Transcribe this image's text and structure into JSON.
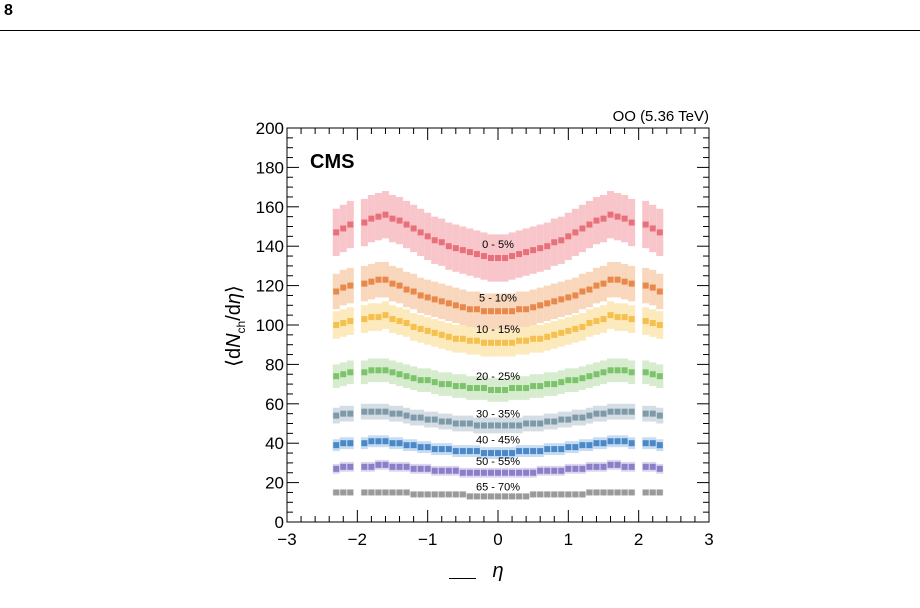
{
  "page": {
    "number": "8"
  },
  "chart_data": {
    "type": "scatter",
    "top_right_label": "OO (5.36 TeV)",
    "experiment_label": "CMS",
    "xlabel": "η",
    "ylabel": "⟨dN_ch/dη⟩",
    "xlim": [
      -3,
      3
    ],
    "ylim": [
      0,
      200
    ],
    "x_ticks": [
      "−3",
      "−2",
      "−1",
      "0",
      "1",
      "2",
      "3"
    ],
    "y_ticks": [
      "0",
      "20",
      "40",
      "60",
      "80",
      "100",
      "120",
      "140",
      "160",
      "180",
      "200"
    ],
    "x": [
      -2.3,
      -2.2,
      -2.1,
      -1.9,
      -1.8,
      -1.7,
      -1.6,
      -1.5,
      -1.4,
      -1.3,
      -1.2,
      -1.1,
      -1.0,
      -0.9,
      -0.8,
      -0.7,
      -0.6,
      -0.5,
      -0.4,
      -0.3,
      -0.2,
      -0.1,
      0.0,
      0.1,
      0.2,
      0.3,
      0.4,
      0.5,
      0.6,
      0.7,
      0.8,
      0.9,
      1.0,
      1.1,
      1.2,
      1.3,
      1.4,
      1.5,
      1.6,
      1.7,
      1.8,
      1.9,
      2.1,
      2.2,
      2.3
    ],
    "series": [
      {
        "name": "0 - 5%",
        "color": "#e8707a",
        "band": "#f5b3b8",
        "unc": 12,
        "values": [
          147,
          149,
          151,
          152,
          154,
          155,
          156,
          154,
          153,
          151,
          149,
          147,
          145,
          143,
          142,
          140,
          139,
          138,
          137,
          136,
          135,
          134,
          134,
          134,
          135,
          136,
          137,
          138,
          139,
          140,
          142,
          143,
          145,
          147,
          149,
          151,
          153,
          154,
          156,
          155,
          154,
          152,
          151,
          149,
          147
        ]
      },
      {
        "name": "5 - 10%",
        "color": "#e8884a",
        "band": "#f6c9a6",
        "unc": 9,
        "values": [
          117,
          119,
          120,
          121,
          122,
          123,
          123,
          121,
          120,
          118,
          117,
          115,
          114,
          113,
          112,
          111,
          110,
          109,
          108,
          108,
          107,
          107,
          107,
          107,
          107,
          108,
          108,
          109,
          110,
          111,
          112,
          113,
          114,
          115,
          117,
          118,
          120,
          121,
          123,
          123,
          122,
          121,
          120,
          119,
          117
        ]
      },
      {
        "name": "10 - 15%",
        "color": "#f5c04d",
        "band": "#fbe2a5",
        "unc": 7,
        "values": [
          100,
          101,
          102,
          103,
          104,
          104,
          105,
          103,
          102,
          101,
          99,
          98,
          97,
          96,
          95,
          94,
          93,
          93,
          92,
          92,
          91,
          91,
          91,
          91,
          91,
          92,
          92,
          93,
          93,
          94,
          95,
          96,
          97,
          98,
          99,
          101,
          102,
          103,
          105,
          104,
          104,
          103,
          102,
          101,
          100
        ]
      },
      {
        "name": "20 - 25%",
        "color": "#7cc46c",
        "band": "#c9e6bf",
        "unc": 6,
        "values": [
          74,
          75,
          76,
          76,
          77,
          77,
          77,
          76,
          75,
          74,
          73,
          72,
          72,
          71,
          70,
          70,
          69,
          69,
          68,
          68,
          68,
          67,
          67,
          67,
          68,
          68,
          68,
          69,
          69,
          70,
          70,
          71,
          72,
          72,
          73,
          74,
          75,
          76,
          77,
          77,
          77,
          76,
          76,
          75,
          74
        ]
      },
      {
        "name": "30 - 35%",
        "color": "#7e9aa8",
        "band": "#c6d2d9",
        "unc": 4,
        "values": [
          54,
          55,
          55,
          56,
          56,
          56,
          56,
          55,
          55,
          54,
          53,
          53,
          52,
          52,
          51,
          51,
          50,
          50,
          50,
          49,
          49,
          49,
          49,
          49,
          49,
          49,
          50,
          50,
          50,
          51,
          51,
          52,
          52,
          53,
          53,
          54,
          55,
          55,
          56,
          56,
          56,
          56,
          55,
          55,
          54
        ]
      },
      {
        "name": "40 - 45%",
        "color": "#4a88c8",
        "band": "#b3d0ee",
        "unc": 3,
        "values": [
          39,
          40,
          40,
          40,
          41,
          41,
          41,
          40,
          40,
          39,
          39,
          38,
          38,
          37,
          37,
          37,
          36,
          36,
          36,
          36,
          35,
          35,
          35,
          35,
          35,
          36,
          36,
          36,
          36,
          37,
          37,
          37,
          38,
          38,
          39,
          39,
          40,
          40,
          41,
          41,
          41,
          40,
          40,
          40,
          39
        ]
      },
      {
        "name": "50 - 55%",
        "color": "#8c7ec8",
        "band": "#cfc8e8",
        "unc": 2.5,
        "values": [
          27,
          28,
          28,
          28,
          28,
          29,
          29,
          28,
          28,
          28,
          27,
          27,
          27,
          26,
          26,
          26,
          26,
          25,
          25,
          25,
          25,
          25,
          25,
          25,
          25,
          25,
          25,
          25,
          26,
          26,
          26,
          26,
          27,
          27,
          27,
          28,
          28,
          28,
          29,
          29,
          28,
          28,
          28,
          28,
          27
        ]
      },
      {
        "name": "65 - 70%",
        "color": "#9a9a9a",
        "band": "#d2d2d2",
        "unc": 1.5,
        "values": [
          15,
          15,
          15,
          15,
          15,
          15,
          15,
          15,
          15,
          15,
          14,
          14,
          14,
          14,
          14,
          14,
          14,
          14,
          13,
          13,
          13,
          13,
          13,
          13,
          13,
          13,
          13,
          14,
          14,
          14,
          14,
          14,
          14,
          14,
          14,
          15,
          15,
          15,
          15,
          15,
          15,
          15,
          15,
          15,
          15
        ]
      }
    ],
    "series_label_positions": [
      {
        "x": 0.0,
        "y": 141
      },
      {
        "x": 0.0,
        "y": 114
      },
      {
        "x": 0.0,
        "y": 98
      },
      {
        "x": 0.0,
        "y": 74
      },
      {
        "x": 0.0,
        "y": 55
      },
      {
        "x": 0.0,
        "y": 42
      },
      {
        "x": 0.0,
        "y": 31
      },
      {
        "x": 0.0,
        "y": 18
      }
    ],
    "grid": false,
    "legend": "none"
  }
}
